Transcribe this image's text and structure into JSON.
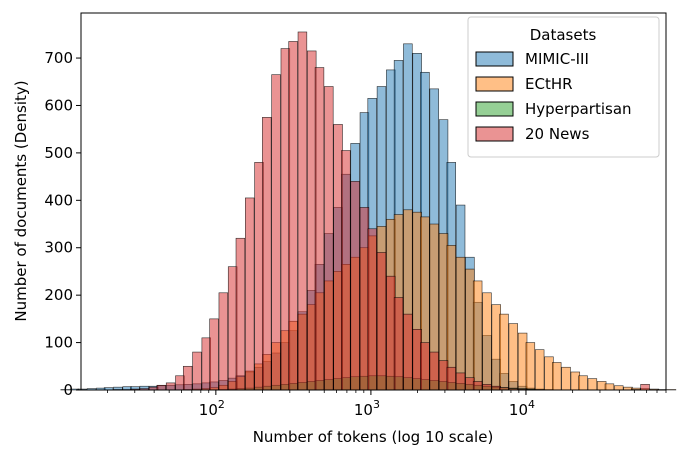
{
  "chart_data": {
    "type": "bar",
    "subtype": "histogram",
    "xlabel": "Number of tokens (log 10 scale)",
    "ylabel": "Number of documents (Density)",
    "x_scale": "log10",
    "xlim": [
      13.5,
      80000
    ],
    "ylim": [
      0,
      795
    ],
    "y_ticks": [
      0,
      100,
      200,
      300,
      400,
      500,
      600,
      700
    ],
    "x_ticks": [
      {
        "value": 100,
        "base": "10",
        "exp": "2"
      },
      {
        "value": 1000,
        "base": "10",
        "exp": "3"
      },
      {
        "value": 10000,
        "base": "10",
        "exp": "4"
      }
    ],
    "grid": false,
    "legend": {
      "title": "Datasets",
      "placement": "top-right",
      "entries": [
        "MIMIC-III",
        "ECtHR",
        "Hyperpartisan",
        "20 News"
      ]
    },
    "bin_width_log10": 0.0567,
    "series": [
      {
        "name": "MIMIC-III",
        "color": "#1f77b4",
        "opacity": 0.5,
        "bins": [
          [
            1.0,
            1
          ],
          [
            1.06,
            2
          ],
          [
            1.11,
            2
          ],
          [
            1.17,
            3
          ],
          [
            1.23,
            4
          ],
          [
            1.28,
            5
          ],
          [
            1.34,
            6
          ],
          [
            1.4,
            7
          ],
          [
            1.45,
            7
          ],
          [
            1.51,
            8
          ],
          [
            1.57,
            8
          ],
          [
            1.62,
            9
          ],
          [
            1.68,
            10
          ],
          [
            1.74,
            11
          ],
          [
            1.79,
            12
          ],
          [
            1.85,
            13
          ],
          [
            1.91,
            15
          ],
          [
            1.96,
            17
          ],
          [
            2.02,
            20
          ],
          [
            2.08,
            25
          ],
          [
            2.13,
            30
          ],
          [
            2.19,
            38
          ],
          [
            2.25,
            48
          ],
          [
            2.3,
            60
          ],
          [
            2.36,
            78
          ],
          [
            2.42,
            100
          ],
          [
            2.47,
            125
          ],
          [
            2.53,
            165
          ],
          [
            2.59,
            210
          ],
          [
            2.64,
            265
          ],
          [
            2.7,
            330
          ],
          [
            2.76,
            385
          ],
          [
            2.81,
            455
          ],
          [
            2.87,
            520
          ],
          [
            2.93,
            585
          ],
          [
            2.98,
            615
          ],
          [
            3.04,
            640
          ],
          [
            3.1,
            675
          ],
          [
            3.15,
            695
          ],
          [
            3.21,
            730
          ],
          [
            3.27,
            710
          ],
          [
            3.32,
            670
          ],
          [
            3.38,
            635
          ],
          [
            3.44,
            570
          ],
          [
            3.49,
            480
          ],
          [
            3.55,
            390
          ],
          [
            3.61,
            280
          ],
          [
            3.66,
            185
          ],
          [
            3.72,
            115
          ],
          [
            3.78,
            65
          ],
          [
            3.83,
            35
          ],
          [
            3.89,
            18
          ],
          [
            3.95,
            8
          ],
          [
            4.0,
            4
          ],
          [
            4.06,
            2
          ],
          [
            4.12,
            1
          ]
        ]
      },
      {
        "name": "ECtHR",
        "color": "#ff7f0e",
        "opacity": 0.5,
        "bins": [
          [
            1.79,
            1
          ],
          [
            1.85,
            2
          ],
          [
            1.91,
            3
          ],
          [
            1.96,
            5
          ],
          [
            2.02,
            10
          ],
          [
            2.08,
            18
          ],
          [
            2.13,
            28
          ],
          [
            2.19,
            40
          ],
          [
            2.25,
            55
          ],
          [
            2.3,
            75
          ],
          [
            2.36,
            100
          ],
          [
            2.42,
            125
          ],
          [
            2.47,
            145
          ],
          [
            2.53,
            160
          ],
          [
            2.59,
            180
          ],
          [
            2.64,
            205
          ],
          [
            2.7,
            230
          ],
          [
            2.76,
            250
          ],
          [
            2.81,
            265
          ],
          [
            2.87,
            280
          ],
          [
            2.93,
            300
          ],
          [
            2.98,
            325
          ],
          [
            3.04,
            345
          ],
          [
            3.1,
            360
          ],
          [
            3.15,
            370
          ],
          [
            3.21,
            380
          ],
          [
            3.27,
            375
          ],
          [
            3.32,
            365
          ],
          [
            3.38,
            350
          ],
          [
            3.44,
            330
          ],
          [
            3.49,
            305
          ],
          [
            3.55,
            280
          ],
          [
            3.61,
            255
          ],
          [
            3.66,
            230
          ],
          [
            3.72,
            205
          ],
          [
            3.78,
            180
          ],
          [
            3.83,
            160
          ],
          [
            3.89,
            140
          ],
          [
            3.95,
            120
          ],
          [
            4.0,
            100
          ],
          [
            4.06,
            85
          ],
          [
            4.12,
            70
          ],
          [
            4.17,
            58
          ],
          [
            4.23,
            48
          ],
          [
            4.29,
            38
          ],
          [
            4.34,
            30
          ],
          [
            4.4,
            24
          ],
          [
            4.46,
            18
          ],
          [
            4.51,
            13
          ],
          [
            4.57,
            9
          ],
          [
            4.63,
            6
          ],
          [
            4.68,
            4
          ],
          [
            4.74,
            3
          ],
          [
            4.8,
            2
          ],
          [
            4.85,
            1
          ],
          [
            4.91,
            1
          ]
        ]
      },
      {
        "name": "Hyperpartisan",
        "color": "#2ca02c",
        "opacity": 0.5,
        "bins": [
          [
            2.02,
            1
          ],
          [
            2.08,
            2
          ],
          [
            2.13,
            3
          ],
          [
            2.19,
            4
          ],
          [
            2.25,
            6
          ],
          [
            2.3,
            8
          ],
          [
            2.36,
            10
          ],
          [
            2.42,
            12
          ],
          [
            2.47,
            14
          ],
          [
            2.53,
            16
          ],
          [
            2.59,
            18
          ],
          [
            2.64,
            20
          ],
          [
            2.7,
            22
          ],
          [
            2.76,
            24
          ],
          [
            2.81,
            26
          ],
          [
            2.87,
            28
          ],
          [
            2.93,
            29
          ],
          [
            2.98,
            30
          ],
          [
            3.04,
            30
          ],
          [
            3.1,
            29
          ],
          [
            3.15,
            28
          ],
          [
            3.21,
            26
          ],
          [
            3.27,
            24
          ],
          [
            3.32,
            22
          ],
          [
            3.38,
            20
          ],
          [
            3.44,
            18
          ],
          [
            3.49,
            16
          ],
          [
            3.55,
            14
          ],
          [
            3.61,
            12
          ],
          [
            3.66,
            10
          ],
          [
            3.72,
            8
          ],
          [
            3.78,
            6
          ],
          [
            3.83,
            5
          ],
          [
            3.89,
            4
          ],
          [
            3.95,
            3
          ],
          [
            4.0,
            2
          ],
          [
            4.06,
            1
          ]
        ]
      },
      {
        "name": "20 News",
        "color": "#d62728",
        "opacity": 0.5,
        "bins": [
          [
            1.34,
            1
          ],
          [
            1.4,
            1
          ],
          [
            1.45,
            2
          ],
          [
            1.51,
            3
          ],
          [
            1.57,
            6
          ],
          [
            1.62,
            10
          ],
          [
            1.68,
            15
          ],
          [
            1.74,
            30
          ],
          [
            1.79,
            50
          ],
          [
            1.85,
            80
          ],
          [
            1.91,
            110
          ],
          [
            1.96,
            150
          ],
          [
            2.02,
            205
          ],
          [
            2.08,
            260
          ],
          [
            2.13,
            320
          ],
          [
            2.19,
            405
          ],
          [
            2.25,
            480
          ],
          [
            2.3,
            575
          ],
          [
            2.36,
            665
          ],
          [
            2.42,
            720
          ],
          [
            2.47,
            735
          ],
          [
            2.53,
            755
          ],
          [
            2.59,
            715
          ],
          [
            2.64,
            680
          ],
          [
            2.7,
            640
          ],
          [
            2.76,
            560
          ],
          [
            2.81,
            505
          ],
          [
            2.87,
            440
          ],
          [
            2.93,
            385
          ],
          [
            2.98,
            340
          ],
          [
            3.04,
            290
          ],
          [
            3.1,
            240
          ],
          [
            3.15,
            195
          ],
          [
            3.21,
            160
          ],
          [
            3.27,
            128
          ],
          [
            3.32,
            100
          ],
          [
            3.38,
            80
          ],
          [
            3.44,
            62
          ],
          [
            3.49,
            48
          ],
          [
            3.55,
            36
          ],
          [
            3.61,
            26
          ],
          [
            3.66,
            18
          ],
          [
            3.72,
            12
          ],
          [
            3.78,
            8
          ],
          [
            3.83,
            5
          ],
          [
            3.89,
            3
          ],
          [
            3.95,
            2
          ],
          [
            4.0,
            1
          ],
          [
            4.68,
            1
          ],
          [
            4.74,
            12
          ]
        ]
      }
    ]
  }
}
